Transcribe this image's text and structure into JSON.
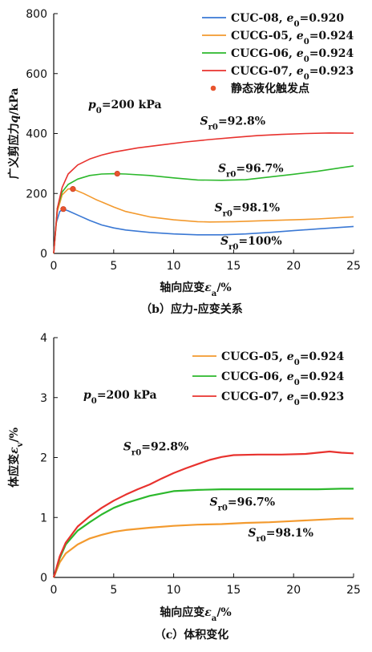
{
  "chart_data": [
    {
      "type": "line",
      "title": "",
      "caption": "（b）应力-应变关系",
      "xlabel": "轴向应变εa/%",
      "ylabel": "广义剪应力q/kPa",
      "xlim": [
        0,
        25
      ],
      "ylim": [
        0,
        800
      ],
      "xticks": [
        "0",
        "5",
        "10",
        "15",
        "20",
        "25"
      ],
      "yticks": [
        "0",
        "200",
        "400",
        "600",
        "800"
      ],
      "grid": false,
      "legend_position": "top-right",
      "legend": [
        {
          "label": "CUC-08, e0=0.920",
          "color": "#3a78d4"
        },
        {
          "label": "CUCG-05, e0=0.924",
          "color": "#f39a2e"
        },
        {
          "label": "CUCG-06, e0=0.924",
          "color": "#2cb82c"
        },
        {
          "label": "CUCG-07, e0=0.923",
          "color": "#e8322e"
        },
        {
          "label": "静态液化触发点",
          "color": "#e8542e",
          "marker": "dot"
        }
      ],
      "condition": "p0=200 kPa",
      "series": [
        {
          "name": "CUC-08, e0=0.920",
          "color": "#3a78d4",
          "x": [
            0,
            0.2,
            0.5,
            0.8,
            1.2,
            2,
            3,
            4,
            5,
            6,
            8,
            10,
            12,
            14,
            16,
            18,
            20,
            22,
            25
          ],
          "y": [
            0,
            100,
            140,
            148,
            142,
            128,
            110,
            95,
            85,
            78,
            70,
            65,
            62,
            62,
            65,
            70,
            76,
            82,
            90
          ]
        },
        {
          "name": "CUCG-05, e0=0.924",
          "color": "#f39a2e",
          "x": [
            0,
            0.3,
            0.7,
            1.2,
            1.6,
            2.5,
            3.5,
            5,
            6,
            8,
            10,
            12,
            13,
            15,
            18,
            20,
            22,
            25
          ],
          "y": [
            0,
            140,
            195,
            215,
            215,
            200,
            180,
            155,
            140,
            122,
            112,
            106,
            105,
            106,
            110,
            112,
            115,
            122
          ]
        },
        {
          "name": "CUCG-06, e0=0.924",
          "color": "#2cb82c",
          "x": [
            0,
            0.3,
            0.7,
            1.2,
            2,
            3,
            4,
            5,
            6,
            8,
            10,
            12,
            14,
            16,
            18,
            20,
            22,
            24,
            25
          ],
          "y": [
            0,
            150,
            205,
            230,
            248,
            260,
            265,
            266,
            265,
            260,
            252,
            245,
            244,
            246,
            255,
            264,
            274,
            286,
            292
          ]
        },
        {
          "name": "CUCG-07, e0=0.923",
          "color": "#e8322e",
          "x": [
            0,
            0.3,
            0.7,
            1.2,
            2,
            3,
            4,
            5,
            7,
            9,
            11,
            13,
            15,
            17,
            19,
            21,
            23,
            25
          ],
          "y": [
            0,
            150,
            220,
            265,
            295,
            315,
            328,
            338,
            352,
            362,
            372,
            380,
            387,
            393,
            397,
            400,
            402,
            401
          ]
        }
      ],
      "trigger_points": {
        "x": [
          0.8,
          1.6,
          5.3
        ],
        "y": [
          148,
          215,
          266
        ]
      },
      "annotations": [
        {
          "text": "Sr0=92.8%",
          "x": 12.2,
          "y": 430
        },
        {
          "text": "Sr0=96.7%",
          "x": 13.7,
          "y": 272
        },
        {
          "text": "Sr0=98.1%",
          "x": 13.4,
          "y": 140
        },
        {
          "text": "Sr0=100%",
          "x": 13.9,
          "y": 30
        }
      ]
    },
    {
      "type": "line",
      "title": "",
      "caption": "（c）体积变化",
      "xlabel": "轴向应变εa/%",
      "ylabel": "体应变εv/%",
      "xlim": [
        0,
        25
      ],
      "ylim": [
        0,
        4
      ],
      "xticks": [
        "0",
        "5",
        "10",
        "15",
        "20",
        "25"
      ],
      "yticks": [
        "0",
        "1",
        "2",
        "3",
        "4"
      ],
      "grid": false,
      "legend_position": "top-right",
      "legend": [
        {
          "label": "CUCG-05, e0=0.924",
          "color": "#f39a2e"
        },
        {
          "label": "CUCG-06, e0=0.924",
          "color": "#2cb82c"
        },
        {
          "label": "CUCG-07, e0=0.923",
          "color": "#e8322e"
        }
      ],
      "condition": "p0=200 kPa",
      "series": [
        {
          "name": "CUCG-05, e0=0.924",
          "color": "#f39a2e",
          "x": [
            0,
            0.5,
            1,
            2,
            3,
            4,
            5,
            6,
            8,
            10,
            12,
            14,
            16,
            18,
            20,
            22,
            24,
            25
          ],
          "y": [
            0,
            0.25,
            0.4,
            0.55,
            0.65,
            0.71,
            0.76,
            0.79,
            0.83,
            0.86,
            0.88,
            0.89,
            0.91,
            0.92,
            0.94,
            0.96,
            0.98,
            0.98
          ]
        },
        {
          "name": "CUCG-06, e0=0.924",
          "color": "#2cb82c",
          "x": [
            0,
            0.5,
            1,
            2,
            3,
            4,
            5,
            6,
            8,
            10,
            12,
            14,
            16,
            18,
            20,
            22,
            24,
            25
          ],
          "y": [
            0,
            0.32,
            0.55,
            0.78,
            0.92,
            1.05,
            1.16,
            1.24,
            1.36,
            1.44,
            1.46,
            1.47,
            1.47,
            1.47,
            1.47,
            1.47,
            1.48,
            1.48
          ]
        },
        {
          "name": "CUCG-07, e0=0.923",
          "color": "#e8322e",
          "x": [
            0,
            0.5,
            1,
            2,
            3,
            4,
            5,
            6,
            7,
            8,
            9,
            10,
            11,
            12,
            13,
            14,
            15,
            17,
            19,
            21,
            22,
            23,
            24,
            25
          ],
          "y": [
            0,
            0.35,
            0.58,
            0.85,
            1.02,
            1.16,
            1.28,
            1.38,
            1.47,
            1.55,
            1.65,
            1.74,
            1.82,
            1.89,
            1.96,
            2.01,
            2.04,
            2.05,
            2.05,
            2.06,
            2.08,
            2.1,
            2.08,
            2.07
          ]
        }
      ],
      "annotations": [
        {
          "text": "Sr0=92.8%",
          "x": 5.8,
          "y": 2.12
        },
        {
          "text": "Sr0=96.7%",
          "x": 13.0,
          "y": 1.2
        },
        {
          "text": "Sr0=98.1%",
          "x": 16.2,
          "y": 0.68
        }
      ]
    }
  ]
}
